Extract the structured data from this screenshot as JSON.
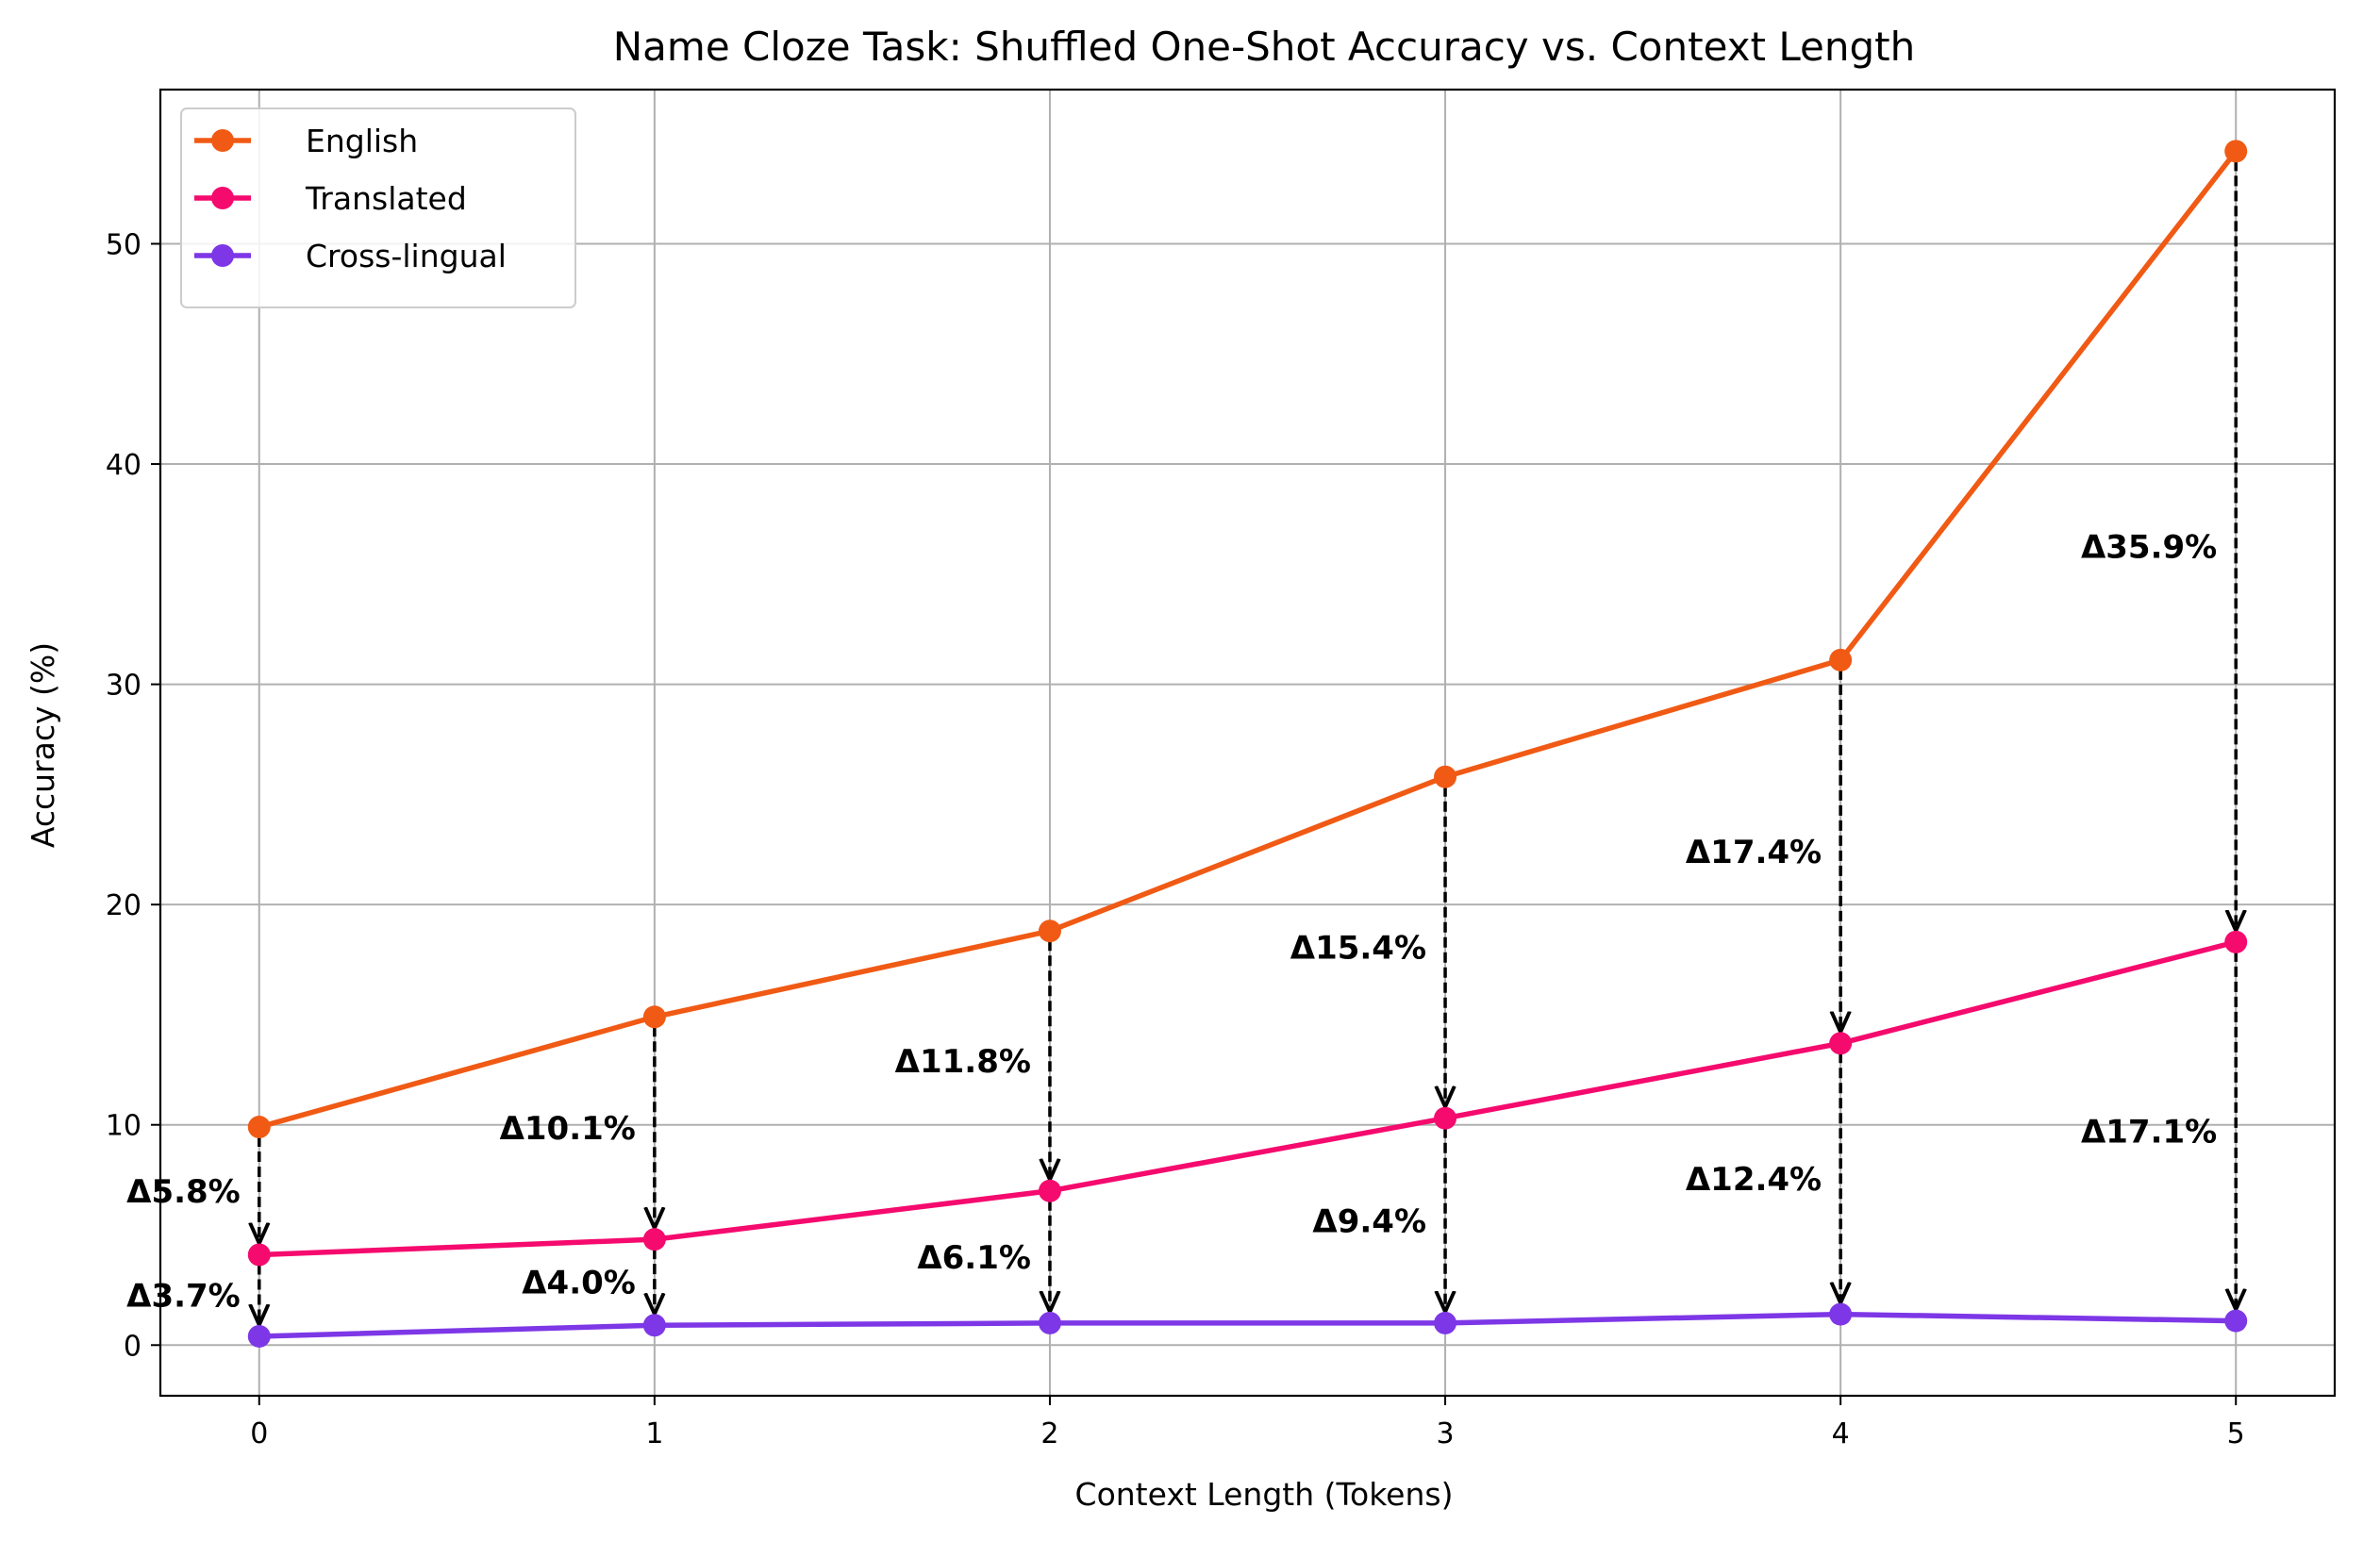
{
  "chart_data": {
    "type": "line",
    "title": "Name Cloze Task: Shuffled One-Shot Accuracy vs. Context Length",
    "xlabel": "Context Length (Tokens)",
    "ylabel": "Accuracy (%)",
    "x": [
      0,
      1,
      2,
      3,
      4,
      5
    ],
    "xticks": [
      "0",
      "1",
      "2",
      "3",
      "4",
      "5"
    ],
    "yticks": [
      0,
      10,
      20,
      30,
      40,
      50
    ],
    "xlim": [
      -0.25,
      5.25
    ],
    "ylim": [
      -2.3,
      57.0
    ],
    "grid": true,
    "legend_position": "top-left",
    "series": [
      {
        "name": "English",
        "color": "#f05a14",
        "values": [
          9.9,
          14.9,
          18.8,
          25.8,
          31.1,
          54.2
        ]
      },
      {
        "name": "Translated",
        "color": "#f50a6e",
        "values": [
          4.1,
          4.8,
          7.0,
          10.3,
          13.7,
          18.3
        ]
      },
      {
        "name": "Cross-lingual",
        "color": "#7d37e6",
        "values": [
          0.4,
          0.9,
          1.0,
          1.0,
          1.4,
          1.1
        ]
      }
    ],
    "annotations": [
      {
        "label": "Δ5.8%",
        "x": 0,
        "from_series": "English",
        "to_series": "Translated"
      },
      {
        "label": "Δ3.7%",
        "x": 0,
        "from_series": "Translated",
        "to_series": "Cross-lingual"
      },
      {
        "label": "Δ10.1%",
        "x": 1,
        "from_series": "English",
        "to_series": "Translated"
      },
      {
        "label": "Δ4.0%",
        "x": 1,
        "from_series": "Translated",
        "to_series": "Cross-lingual"
      },
      {
        "label": "Δ11.8%",
        "x": 2,
        "from_series": "English",
        "to_series": "Translated"
      },
      {
        "label": "Δ6.1%",
        "x": 2,
        "from_series": "Translated",
        "to_series": "Cross-lingual"
      },
      {
        "label": "Δ15.4%",
        "x": 3,
        "from_series": "English",
        "to_series": "Translated"
      },
      {
        "label": "Δ9.4%",
        "x": 3,
        "from_series": "Translated",
        "to_series": "Cross-lingual"
      },
      {
        "label": "Δ17.4%",
        "x": 4,
        "from_series": "English",
        "to_series": "Translated"
      },
      {
        "label": "Δ12.4%",
        "x": 4,
        "from_series": "Translated",
        "to_series": "Cross-lingual"
      },
      {
        "label": "Δ35.9%",
        "x": 5,
        "from_series": "English",
        "to_series": "Translated"
      },
      {
        "label": "Δ17.1%",
        "x": 5,
        "from_series": "Translated",
        "to_series": "Cross-lingual"
      }
    ]
  }
}
